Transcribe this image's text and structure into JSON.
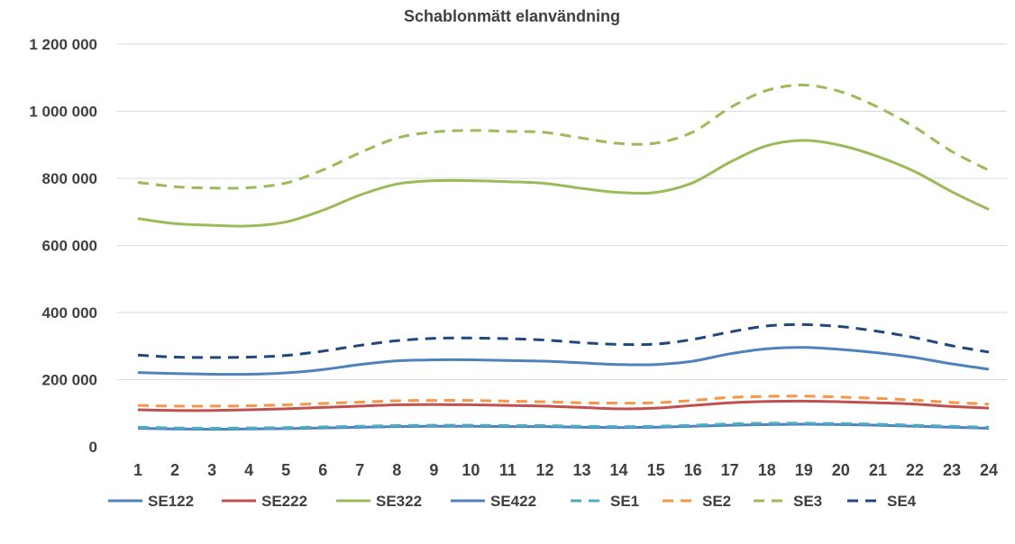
{
  "chart_data": {
    "type": "line",
    "title": "Schablonmätt elanvändning",
    "xlabel": "",
    "ylabel": "",
    "x": [
      1,
      2,
      3,
      4,
      5,
      6,
      7,
      8,
      9,
      10,
      11,
      12,
      13,
      14,
      15,
      16,
      17,
      18,
      19,
      20,
      21,
      22,
      23,
      24
    ],
    "ylim": [
      0,
      1200000
    ],
    "yticks": [
      0,
      200000,
      400000,
      600000,
      800000,
      1000000,
      1200000
    ],
    "ytick_labels": [
      "0",
      "200 000",
      "400 000",
      "600 000",
      "800 000",
      "1 000 000",
      "1 200 000"
    ],
    "grid": true,
    "legend_position": "bottom",
    "series": [
      {
        "name": "SE122",
        "color": "#4f81bd",
        "dash": "solid",
        "values": [
          55000,
          53000,
          52000,
          53000,
          54000,
          56000,
          58000,
          60000,
          61000,
          61000,
          60000,
          60000,
          58000,
          57000,
          58000,
          61000,
          64000,
          66000,
          67000,
          66000,
          64000,
          61000,
          58000,
          55000
        ]
      },
      {
        "name": "SE222",
        "color": "#c0504d",
        "dash": "solid",
        "values": [
          110000,
          108000,
          108000,
          110000,
          113000,
          117000,
          121000,
          125000,
          126000,
          125000,
          123000,
          121000,
          117000,
          113000,
          115000,
          123000,
          131000,
          135000,
          136000,
          134000,
          131000,
          127000,
          120000,
          115000
        ]
      },
      {
        "name": "SE322",
        "color": "#9bbb59",
        "dash": "solid",
        "values": [
          680000,
          665000,
          660000,
          658000,
          670000,
          705000,
          750000,
          783000,
          793000,
          793000,
          790000,
          785000,
          770000,
          758000,
          758000,
          787000,
          848000,
          897000,
          913000,
          898000,
          865000,
          820000,
          760000,
          707000
        ]
      },
      {
        "name": "SE422",
        "color": "#4f81bd",
        "dash": "solid",
        "values": [
          221000,
          218000,
          216000,
          216000,
          220000,
          230000,
          245000,
          256000,
          259000,
          259000,
          257000,
          255000,
          250000,
          245000,
          245000,
          255000,
          277000,
          292000,
          296000,
          290000,
          280000,
          266000,
          247000,
          231000
        ]
      },
      {
        "name": "SE1",
        "color": "#4bacc6",
        "dash": "dashed",
        "values": [
          58000,
          56000,
          55000,
          56000,
          57000,
          59000,
          61000,
          63000,
          64000,
          64000,
          63000,
          63000,
          61000,
          60000,
          61000,
          64000,
          68000,
          70000,
          70000,
          69000,
          67000,
          64000,
          61000,
          58000
        ]
      },
      {
        "name": "SE2",
        "color": "#f79646",
        "dash": "dashed",
        "values": [
          123000,
          121000,
          121000,
          122000,
          125000,
          129000,
          133000,
          137000,
          138000,
          138000,
          136000,
          134000,
          131000,
          130000,
          131000,
          138000,
          147000,
          150000,
          151000,
          148000,
          144000,
          139000,
          132000,
          127000
        ]
      },
      {
        "name": "SE3",
        "color": "#9bbb59",
        "dash": "dashed",
        "values": [
          788000,
          775000,
          771000,
          772000,
          786000,
          825000,
          876000,
          920000,
          938000,
          943000,
          940000,
          937000,
          920000,
          904000,
          905000,
          938000,
          1010000,
          1062000,
          1078000,
          1058000,
          1012000,
          952000,
          880000,
          824000
        ]
      },
      {
        "name": "SE4",
        "color": "#1f497d",
        "dash": "dashed",
        "values": [
          273000,
          267000,
          266000,
          267000,
          272000,
          285000,
          302000,
          316000,
          323000,
          324000,
          322000,
          318000,
          310000,
          305000,
          306000,
          320000,
          342000,
          360000,
          364000,
          358000,
          344000,
          325000,
          301000,
          282000
        ]
      }
    ]
  }
}
